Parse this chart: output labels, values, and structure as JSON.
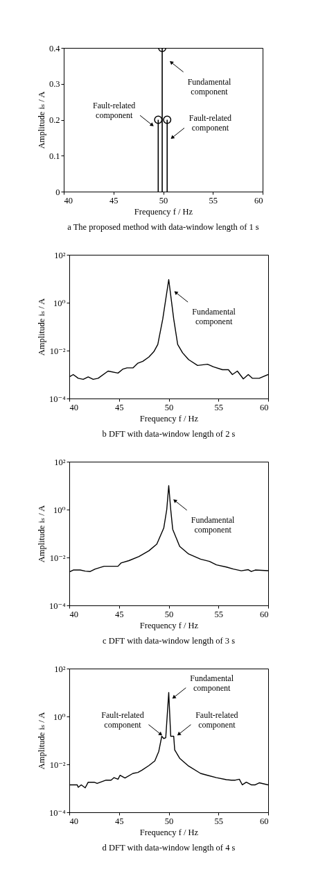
{
  "chart_data": [
    {
      "type": "lollipop",
      "title": "a The proposed method with data-window length of 1 s",
      "xlabel": "Frequency f / Hz",
      "ylabel": "Amplitude iₛ / A",
      "x": [
        49.5,
        49.9,
        50.4
      ],
      "values": [
        0.2,
        0.4,
        0.2
      ],
      "color": "#000000",
      "marker": "circle",
      "xlim": [
        40,
        60
      ],
      "xticks": [
        40,
        45,
        50,
        55,
        60
      ],
      "ylim": [
        0,
        0.4
      ],
      "yticks": [
        0,
        0.1,
        0.2,
        0.3,
        0.4
      ],
      "annotations": [
        {
          "text": "Fundamental component",
          "x": 50.8,
          "y": 0.36
        },
        {
          "text": "Fault-related component",
          "x": 48.9,
          "y": 0.185
        },
        {
          "text": "Fault-related component",
          "x": 50.9,
          "y": 0.15
        }
      ]
    },
    {
      "type": "line",
      "title": "b DFT with data-window length of 2 s",
      "xlabel": "Frequency f / Hz",
      "ylabel": "Amplitude iₛ / A",
      "log": "y",
      "color": "#000000",
      "x": [
        40,
        40.4,
        40.9,
        41.4,
        41.9,
        42.4,
        42.9,
        43.9,
        44.9,
        45.4,
        45.8,
        46.4,
        46.9,
        47.4,
        48.0,
        48.5,
        48.9,
        49.4,
        50,
        50.5,
        50.9,
        51.4,
        52.0,
        52.9,
        53.9,
        54.5,
        55.4,
        56.0,
        56.4,
        56.9,
        57.5,
        58.0,
        58.4,
        59.1,
        60
      ],
      "values": [
        0.0008,
        0.001,
        0.0007,
        0.00063,
        0.0008,
        0.00063,
        0.0007,
        0.0014,
        0.00115,
        0.0017,
        0.0019,
        0.0019,
        0.003,
        0.0036,
        0.0054,
        0.009,
        0.018,
        0.21,
        9.2,
        0.21,
        0.018,
        0.008,
        0.0042,
        0.0024,
        0.0027,
        0.0021,
        0.0016,
        0.0016,
        0.001,
        0.0014,
        0.00066,
        0.001,
        0.0007,
        0.0007,
        0.001
      ],
      "xlim": [
        40,
        60
      ],
      "xticks": [
        40,
        45,
        50,
        55,
        60
      ],
      "ylim": [
        0.0001,
        100
      ],
      "yticks": [
        {
          "value": 0.0001,
          "label": "10⁻⁴"
        },
        {
          "value": 0.01,
          "label": "10⁻²"
        },
        {
          "value": 1,
          "label": "10⁰"
        },
        {
          "value": 100,
          "label": "10²"
        }
      ],
      "annotations": [
        {
          "text": "Fundamental component",
          "x": 50.7,
          "y": 2.7
        }
      ]
    },
    {
      "type": "line",
      "title": "c DFT with data-window length of 3 s",
      "xlabel": "Frequency f / Hz",
      "ylabel": "Amplitude iₛ / A",
      "log": "y",
      "color": "#000000",
      "x": [
        40,
        40.4,
        41.1,
        41.6,
        42.1,
        42.6,
        43.5,
        44.9,
        45.2,
        46.0,
        47.0,
        48.0,
        48.8,
        49.5,
        49.8,
        50,
        50.2,
        50.4,
        51.1,
        52.0,
        53.2,
        54.1,
        54.8,
        55.8,
        56.5,
        57.3,
        58.0,
        58.3,
        58.7,
        60
      ],
      "values": [
        0.0025,
        0.003,
        0.003,
        0.0027,
        0.0026,
        0.0033,
        0.0043,
        0.0043,
        0.0059,
        0.0074,
        0.011,
        0.019,
        0.036,
        0.17,
        1,
        10,
        1,
        0.15,
        0.029,
        0.014,
        0.0085,
        0.0069,
        0.0049,
        0.004,
        0.0033,
        0.0028,
        0.0031,
        0.0026,
        0.003,
        0.0028
      ],
      "xlim": [
        40,
        60
      ],
      "xticks": [
        40,
        45,
        50,
        55,
        60
      ],
      "ylim": [
        0.0001,
        100
      ],
      "yticks": [
        {
          "value": 0.0001,
          "label": "10⁻⁴"
        },
        {
          "value": 0.01,
          "label": "10⁻²"
        },
        {
          "value": 1,
          "label": "10⁰"
        },
        {
          "value": 100,
          "label": "10²"
        }
      ],
      "annotations": [
        {
          "text": "Fundamental component",
          "x": 50.6,
          "y": 2.4
        }
      ]
    },
    {
      "type": "line",
      "title": "d DFT with data-window length of 4 s",
      "xlabel": "Frequency f / Hz",
      "ylabel": "Amplitude iₛ / A",
      "log": "y",
      "color": "#000000",
      "x": [
        40,
        40.8,
        40.9,
        41.2,
        41.6,
        41.9,
        42.5,
        42.8,
        43.7,
        44.2,
        44.5,
        44.9,
        45.1,
        45.6,
        46.4,
        46.9,
        47.3,
        48.0,
        48.6,
        49.0,
        49.3,
        49.5,
        49.7,
        50,
        50.2,
        50.5,
        50.6,
        51.1,
        52.0,
        53.2,
        53.9,
        54.8,
        55.8,
        56.3,
        56.7,
        57.1,
        57.4,
        57.8,
        58.3,
        58.7,
        59.1,
        60
      ],
      "values": [
        0.0014,
        0.0014,
        0.0011,
        0.0014,
        0.00105,
        0.0018,
        0.0018,
        0.0016,
        0.0022,
        0.0022,
        0.0028,
        0.0024,
        0.0035,
        0.0027,
        0.0042,
        0.0046,
        0.0057,
        0.0089,
        0.014,
        0.035,
        0.15,
        0.12,
        0.13,
        10,
        0.15,
        0.15,
        0.04,
        0.018,
        0.0085,
        0.0042,
        0.0035,
        0.0028,
        0.0023,
        0.0022,
        0.0022,
        0.0024,
        0.0014,
        0.0018,
        0.0014,
        0.0014,
        0.0017,
        0.0014
      ],
      "xlim": [
        40,
        60
      ],
      "xticks": [
        40,
        45,
        50,
        55,
        60
      ],
      "ylim": [
        0.0001,
        100
      ],
      "yticks": [
        {
          "value": 0.0001,
          "label": "10⁻⁴"
        },
        {
          "value": 0.01,
          "label": "10⁻²"
        },
        {
          "value": 1,
          "label": "10⁰"
        },
        {
          "value": 100,
          "label": "10²"
        }
      ],
      "annotations": [
        {
          "text": "Fundamental component",
          "x": 50.5,
          "y": 6.2
        },
        {
          "text": "Fault-related component",
          "x": 49.2,
          "y": 0.18
        },
        {
          "text": "Fault-related component",
          "x": 51.0,
          "y": 0.18
        }
      ]
    }
  ]
}
